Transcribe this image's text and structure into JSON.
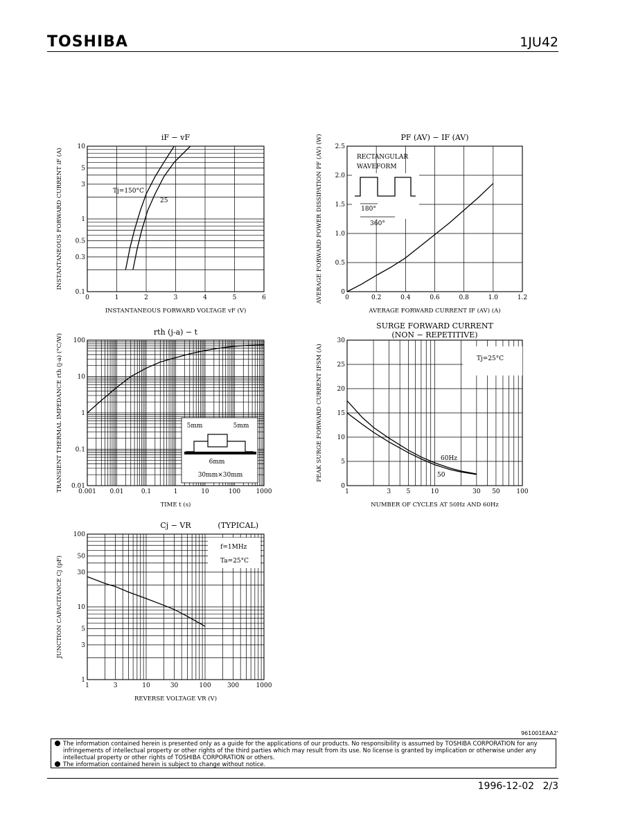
{
  "header": {
    "brand": "TOSHIBA",
    "part_number": "1JU42"
  },
  "footer": {
    "date": "1996-12-02",
    "page": "2/3"
  },
  "doc_code": "961001EAA2'",
  "disclaimer": [
    "The information contained herein is presented only as a guide for the applications of our products. No responsibility is assumed by TOSHIBA CORPORATION for any infringements of intellectual property or other rights of the third parties which may result from its use. No license is granted by implication or otherwise under any intellectual property or other rights of TOSHIBA CORPORATION or others.",
    "The information contained herein is subject to change without notice."
  ],
  "chart_data": [
    {
      "type": "line",
      "title": "iF − vF",
      "xlabel": "INSTANTANEOUS FORWARD VOLTAGE vF (V)",
      "ylabel": "INSTANTANEOUS FORWARD CURRENT iF (A)",
      "xlim": [
        0,
        6
      ],
      "ylim": [
        0.1,
        10
      ],
      "yscale": "log",
      "grid": true,
      "xticks": [
        "0",
        "1",
        "2",
        "3",
        "4",
        "5",
        "6"
      ],
      "yticks": [
        "10",
        "5",
        "3",
        "1",
        "0.5",
        "0.3",
        "0.1"
      ],
      "annotations": [
        "Tj=150°C",
        "25"
      ],
      "series": [
        {
          "name": "Tj=150°C",
          "x": [
            1.3,
            1.45,
            1.6,
            1.8,
            2.0,
            2.3,
            2.6,
            2.95
          ],
          "y": [
            0.2,
            0.4,
            0.7,
            1.3,
            2.2,
            3.8,
            6.0,
            10
          ]
        },
        {
          "name": "25",
          "x": [
            1.55,
            1.7,
            1.85,
            2.05,
            2.3,
            2.6,
            2.95,
            3.5
          ],
          "y": [
            0.2,
            0.4,
            0.7,
            1.3,
            2.2,
            3.8,
            6.0,
            10
          ]
        }
      ]
    },
    {
      "type": "line",
      "title": "PF (AV) − IF (AV)",
      "xlabel": "AVERAGE FORWARD CURRENT IF (AV) (A)",
      "ylabel": "AVERAGE FORWARD POWER DISSIPATION PF (AV) (W)",
      "xlim": [
        0,
        1.2
      ],
      "ylim": [
        0,
        2.5
      ],
      "grid": true,
      "xticks": [
        "0",
        "0.2",
        "0.4",
        "0.6",
        "0.8",
        "1.0",
        "1.2"
      ],
      "yticks": [
        "2.5",
        "2.0",
        "1.5",
        "1.0",
        "0.5",
        "0"
      ],
      "annotations": [
        "RECTANGULAR",
        "WAVEFORM",
        "180°",
        "360°"
      ],
      "series": [
        {
          "name": "",
          "x": [
            0,
            0.1,
            0.2,
            0.3,
            0.4,
            0.5,
            0.6,
            0.7,
            0.8,
            0.9,
            1.0
          ],
          "y": [
            0.0,
            0.13,
            0.28,
            0.42,
            0.58,
            0.78,
            0.98,
            1.18,
            1.4,
            1.62,
            1.86
          ]
        }
      ]
    },
    {
      "type": "line",
      "title": "rth (j-a) − t",
      "xlabel": "TIME t (s)",
      "ylabel": "TRANSIENT THERMAL IMPEDANCE rth (j-a) (°C/W)",
      "xscale": "log",
      "yscale": "log",
      "xlim": [
        0.001,
        1000
      ],
      "ylim": [
        0.01,
        100
      ],
      "grid": true,
      "xticks": [
        "0.001",
        "0.01",
        "0.1",
        "1",
        "10",
        "100",
        "1000"
      ],
      "yticks": [
        "100",
        "10",
        "1",
        "0.1",
        "0.01"
      ],
      "annotations": [
        "5mm",
        "5mm",
        "6mm",
        "30mm×30mm"
      ],
      "series": [
        {
          "name": "",
          "x": [
            0.001,
            0.003,
            0.01,
            0.03,
            0.1,
            0.3,
            1,
            3,
            10,
            30,
            100,
            300,
            1000
          ],
          "y": [
            1.0,
            2.2,
            5.0,
            10,
            17,
            25,
            33,
            42,
            52,
            60,
            68,
            72,
            75
          ]
        }
      ]
    },
    {
      "type": "line",
      "title": "SURGE FORWARD CURRENT",
      "subtitle": "(NON − REPETITIVE)",
      "xlabel": "NUMBER OF CYCLES AT 50Hz AND 60Hz",
      "ylabel": "PEAK SURGE FORWARD CURRENT IFSM (A)",
      "xscale": "log",
      "xlim": [
        1,
        100
      ],
      "ylim": [
        0,
        30
      ],
      "grid": true,
      "xticks": [
        "1",
        "3",
        "5",
        "10",
        "30",
        "50",
        "100"
      ],
      "yticks": [
        "30",
        "25",
        "20",
        "15",
        "10",
        "5",
        "0"
      ],
      "annotations": [
        "Tj=25°C",
        "60Hz",
        "50"
      ],
      "series": [
        {
          "name": "60Hz",
          "x": [
            1,
            1.5,
            2,
            3,
            5,
            7,
            10,
            15,
            20,
            30
          ],
          "y": [
            17.5,
            14.0,
            12.0,
            9.8,
            7.3,
            5.9,
            4.7,
            3.6,
            3.0,
            2.4
          ]
        },
        {
          "name": "50",
          "x": [
            1,
            1.5,
            2,
            3,
            5,
            7,
            10,
            15,
            20,
            30
          ],
          "y": [
            15.0,
            12.6,
            11.0,
            9.0,
            6.8,
            5.5,
            4.3,
            3.3,
            2.8,
            2.3
          ]
        }
      ]
    },
    {
      "type": "line",
      "title": "Cj − VR",
      "subtitle": "(TYPICAL)",
      "xlabel": "REVERSE VOLTAGE VR (V)",
      "ylabel": "JUNCTION CAPACITANCE Cj (pF)",
      "xscale": "log",
      "yscale": "log",
      "xlim": [
        1,
        1000
      ],
      "ylim": [
        1,
        100
      ],
      "grid": true,
      "xticks": [
        "1",
        "3",
        "10",
        "30",
        "100",
        "300",
        "1000"
      ],
      "yticks": [
        "100",
        "50",
        "30",
        "10",
        "5",
        "3",
        "1"
      ],
      "annotations": [
        "f=1MHz",
        "Ta=25°C"
      ],
      "series": [
        {
          "name": "",
          "x": [
            1,
            2,
            3,
            5,
            10,
            20,
            30,
            50,
            100
          ],
          "y": [
            26,
            21,
            19,
            16,
            13,
            10.5,
            9.2,
            7.4,
            5.4
          ]
        }
      ]
    }
  ]
}
